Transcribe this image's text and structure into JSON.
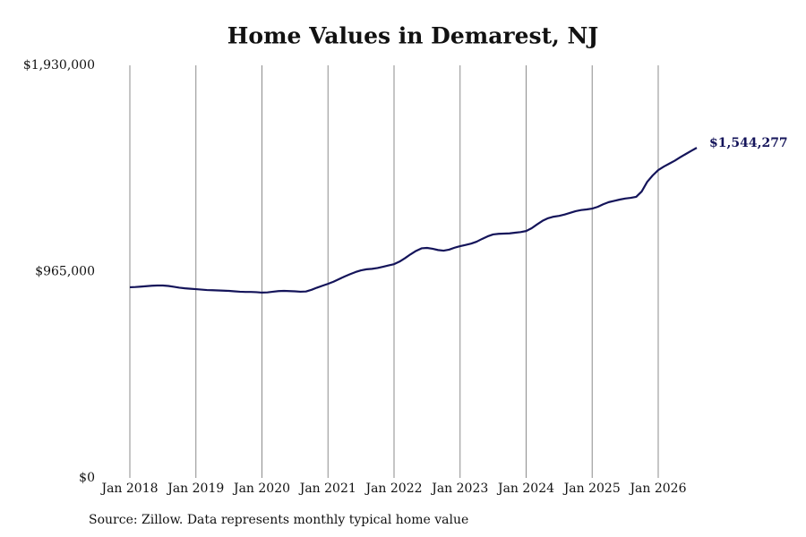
{
  "chart_data": {
    "type": "line",
    "title": "Home Values in Demarest, NJ",
    "source": "Source: Zillow. Data represents monthly typical home value",
    "x": [
      "2018-01",
      "2018-02",
      "2018-03",
      "2018-04",
      "2018-05",
      "2018-06",
      "2018-07",
      "2018-08",
      "2018-09",
      "2018-10",
      "2018-11",
      "2018-12",
      "2019-01",
      "2019-02",
      "2019-03",
      "2019-04",
      "2019-05",
      "2019-06",
      "2019-07",
      "2019-08",
      "2019-09",
      "2019-10",
      "2019-11",
      "2019-12",
      "2020-01",
      "2020-02",
      "2020-03",
      "2020-04",
      "2020-05",
      "2020-06",
      "2020-07",
      "2020-08",
      "2020-09",
      "2020-10",
      "2020-11",
      "2020-12",
      "2021-01",
      "2021-02",
      "2021-03",
      "2021-04",
      "2021-05",
      "2021-06",
      "2021-07",
      "2021-08",
      "2021-09",
      "2021-10",
      "2021-11",
      "2021-12",
      "2022-01",
      "2022-02",
      "2022-03",
      "2022-04",
      "2022-05",
      "2022-06",
      "2022-07",
      "2022-08",
      "2022-09",
      "2022-10",
      "2022-11",
      "2022-12",
      "2023-01",
      "2023-02",
      "2023-03",
      "2023-04",
      "2023-05",
      "2023-06",
      "2023-07",
      "2023-08",
      "2023-09",
      "2023-10",
      "2023-11",
      "2023-12",
      "2024-01",
      "2024-02",
      "2024-03",
      "2024-04",
      "2024-05",
      "2024-06",
      "2024-07",
      "2024-08",
      "2024-09",
      "2024-10",
      "2024-11",
      "2024-12",
      "2025-01",
      "2025-02",
      "2025-03",
      "2025-04",
      "2025-05",
      "2025-06",
      "2025-07",
      "2025-08",
      "2025-09",
      "2025-10",
      "2025-11",
      "2025-12",
      "2026-01",
      "2026-02",
      "2026-03",
      "2026-04",
      "2026-05",
      "2026-06",
      "2026-07",
      "2026-08"
    ],
    "series": [
      {
        "name": "Home value",
        "color": "#14145a",
        "values": [
          892000,
          893000,
          895000,
          897000,
          899000,
          900000,
          900000,
          898000,
          894000,
          890000,
          887000,
          885000,
          883000,
          881000,
          879000,
          878000,
          877000,
          876000,
          875000,
          873000,
          871000,
          870000,
          870000,
          869000,
          867000,
          868000,
          871000,
          874000,
          875000,
          874000,
          873000,
          871000,
          872000,
          880000,
          890000,
          899000,
          908000,
          918000,
          930000,
          942000,
          953000,
          963000,
          971000,
          976000,
          978000,
          982000,
          988000,
          994000,
          1000000,
          1012000,
          1028000,
          1046000,
          1062000,
          1074000,
          1076000,
          1072000,
          1066000,
          1063000,
          1068000,
          1077000,
          1084000,
          1090000,
          1096000,
          1105000,
          1118000,
          1130000,
          1139000,
          1142000,
          1143000,
          1144000,
          1147000,
          1150000,
          1155000,
          1168000,
          1186000,
          1203000,
          1215000,
          1222000,
          1226000,
          1232000,
          1240000,
          1248000,
          1253000,
          1256000,
          1260000,
          1268000,
          1280000,
          1290000,
          1296000,
          1302000,
          1307000,
          1310000,
          1315000,
          1340000,
          1385000,
          1415000,
          1440000,
          1456000,
          1470000,
          1484000,
          1500000,
          1515000,
          1530000,
          1544277
        ],
        "value_labels": [
          null,
          null,
          null,
          null,
          null,
          null,
          null,
          null,
          null,
          null,
          null,
          null,
          null,
          null,
          null,
          null,
          null,
          null,
          null,
          null,
          null,
          null,
          null,
          null,
          null,
          null,
          null,
          null,
          null,
          null,
          null,
          null,
          null,
          null,
          null,
          null,
          null,
          null,
          null,
          null,
          null,
          null,
          null,
          null,
          null,
          null,
          null,
          null,
          null,
          null,
          null,
          null,
          null,
          null,
          null,
          null,
          null,
          null,
          null,
          null,
          null,
          null,
          null,
          null,
          null,
          null,
          null,
          null,
          null,
          null,
          null,
          null,
          null,
          null,
          null,
          null,
          null,
          null,
          null,
          null,
          null,
          null,
          null,
          null,
          null,
          null,
          null,
          null,
          null,
          null,
          null,
          null,
          null,
          null,
          null,
          null,
          null,
          null,
          null,
          null,
          null,
          null,
          null,
          "$1,544,277"
        ]
      }
    ],
    "xlim": [
      "2018-01",
      "2026-08"
    ],
    "xticks": [
      {
        "value": "2018-01",
        "label": "Jan 2018"
      },
      {
        "value": "2019-01",
        "label": "Jan 2019"
      },
      {
        "value": "2020-01",
        "label": "Jan 2020"
      },
      {
        "value": "2021-01",
        "label": "Jan 2021"
      },
      {
        "value": "2022-01",
        "label": "Jan 2022"
      },
      {
        "value": "2023-01",
        "label": "Jan 2023"
      },
      {
        "value": "2024-01",
        "label": "Jan 2024"
      },
      {
        "value": "2025-01",
        "label": "Jan 2025"
      },
      {
        "value": "2026-01",
        "label": "Jan 2026"
      }
    ],
    "ylim": [
      0,
      1930000
    ],
    "yticks": [
      {
        "value": 0,
        "label": "$0"
      },
      {
        "value": 965000,
        "label": "$965,000"
      },
      {
        "value": 1930000,
        "label": "$1,930,000"
      }
    ],
    "grid": "x"
  }
}
